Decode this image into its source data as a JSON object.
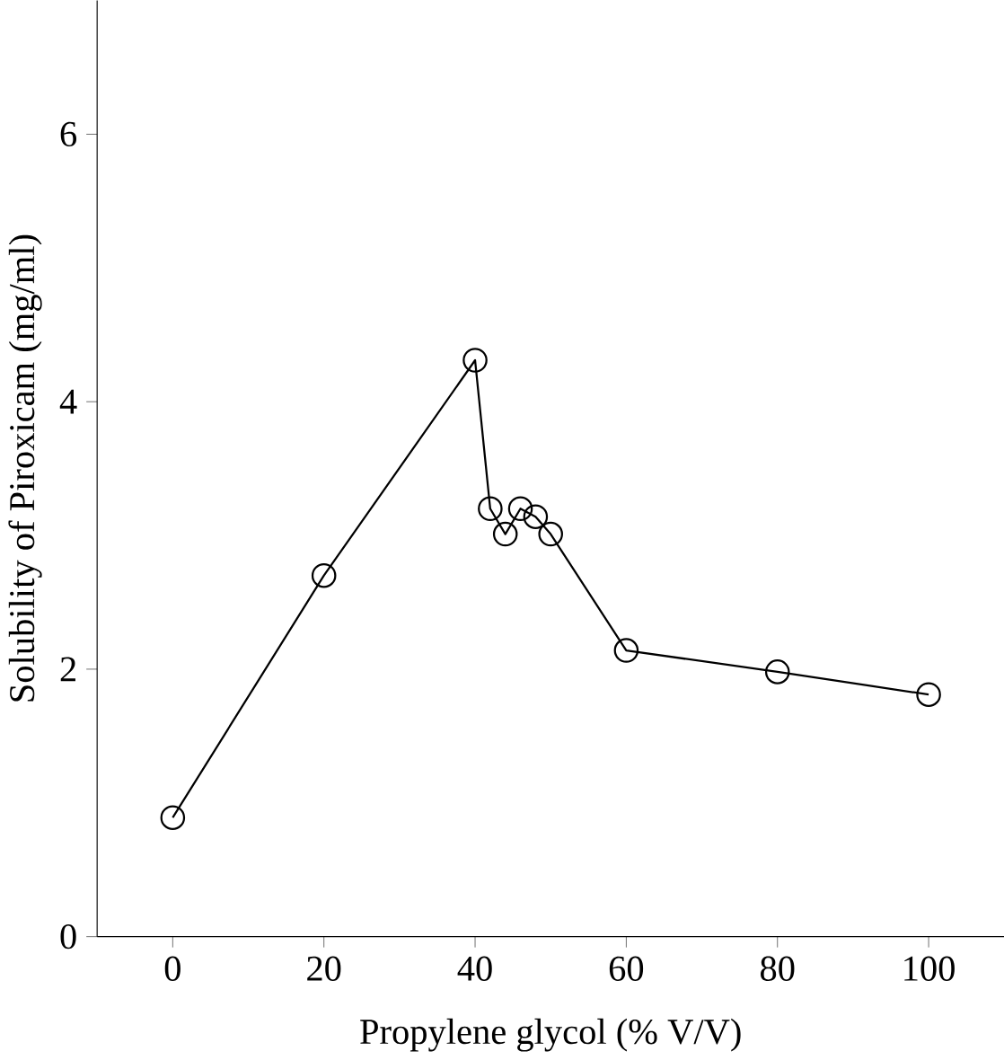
{
  "chart_data": {
    "type": "line",
    "xlabel": "Propylene glycol  (% V/V)",
    "ylabel": "Solubility of Piroxicam (mg/ml)",
    "x": [
      0,
      20,
      40,
      42,
      44,
      46,
      48,
      50,
      60,
      80,
      100
    ],
    "series": [
      {
        "color": "#000000",
        "values": [
          0.89,
          2.7,
          4.31,
          3.2,
          3.01,
          3.2,
          3.14,
          3.01,
          2.14,
          1.98,
          1.81
        ]
      }
    ],
    "xlim": [
      -10,
      110
    ],
    "ylim": [
      0,
      7
    ],
    "xticks": [
      0,
      20,
      40,
      60,
      80,
      100
    ],
    "yticks": [
      0,
      2,
      4,
      6
    ],
    "marker": "circle",
    "line_style": "solid",
    "grid": false
  }
}
